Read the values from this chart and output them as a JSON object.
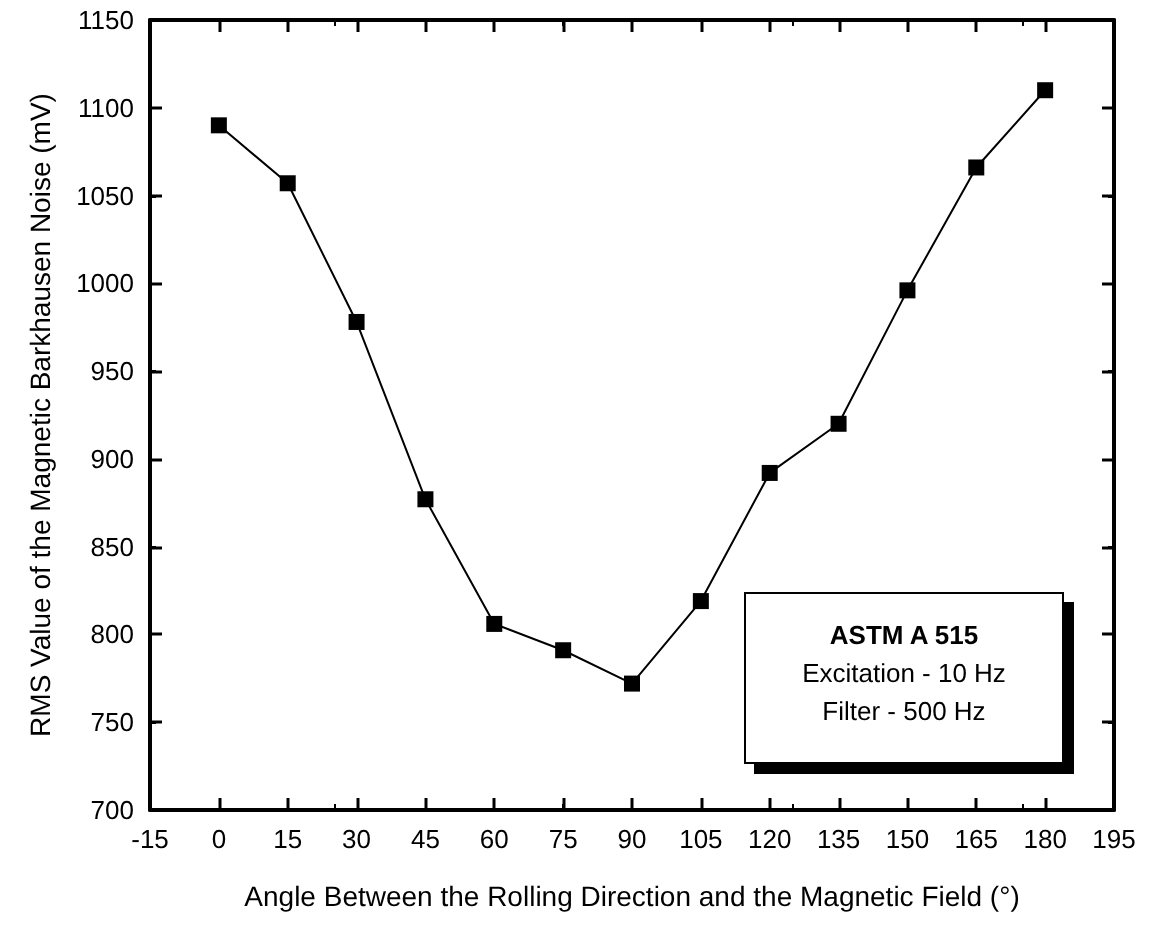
{
  "chart_data": {
    "type": "line",
    "xlabel": "Angle Between the Rolling Direction and the Magnetic Field (°)",
    "ylabel": "RMS Value of the Magnetic Barkhausen Noise (mV)",
    "x": [
      0,
      15,
      30,
      45,
      60,
      75,
      90,
      105,
      120,
      135,
      150,
      165,
      180
    ],
    "series": [
      {
        "color": "#000000",
        "values": [
          1090,
          1057,
          978,
          877,
          806,
          791,
          772,
          819,
          892,
          920,
          996,
          1066,
          1110
        ]
      }
    ],
    "xlim": [
      -15,
      195
    ],
    "xticks": [
      -15,
      0,
      15,
      30,
      45,
      60,
      75,
      90,
      105,
      120,
      135,
      150,
      165,
      180,
      195
    ],
    "ylim": [
      700,
      1150
    ],
    "yticks": [
      700,
      750,
      800,
      850,
      900,
      950,
      1000,
      1050,
      1100,
      1150
    ],
    "grid": false,
    "marker": "square",
    "line_style": "solid",
    "annotations": [
      "ASTM A 515",
      "Excitation - 10 Hz",
      "Filter - 500 Hz"
    ]
  }
}
